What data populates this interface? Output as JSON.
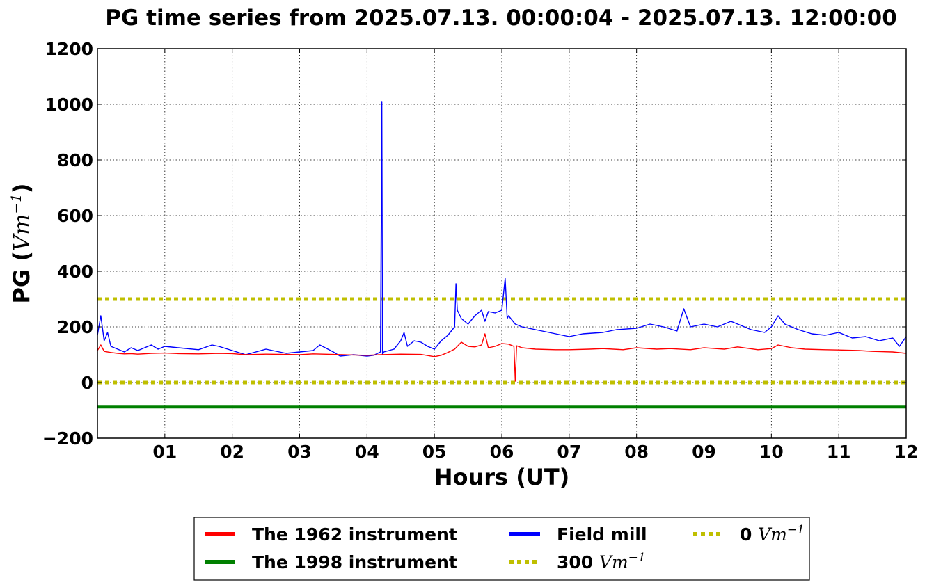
{
  "chart_data": {
    "type": "line",
    "title": "PG time series from 2025.07.13. 00:00:04 - 2025.07.13. 12:00:00",
    "xlabel": "Hours (UT)",
    "ylabel_prefix": "PG (",
    "ylabel_unit": "Vm",
    "ylabel_exp": "−1",
    "ylabel_suffix": ")",
    "xlim": [
      0,
      12
    ],
    "ylim": [
      -200,
      1200
    ],
    "x_ticks": [
      1,
      2,
      3,
      4,
      5,
      6,
      7,
      8,
      9,
      10,
      11,
      12
    ],
    "x_tick_labels": [
      "01",
      "02",
      "03",
      "04",
      "05",
      "06",
      "07",
      "08",
      "09",
      "10",
      "11",
      "12"
    ],
    "y_ticks": [
      -200,
      0,
      200,
      400,
      600,
      800,
      1000,
      1200
    ],
    "y_tick_labels": [
      "−200",
      "0",
      "200",
      "400",
      "600",
      "800",
      "1000",
      "1200"
    ],
    "grid": true,
    "legend_position": "bottom-center, below axes",
    "series": [
      {
        "name": "The 1962 instrument",
        "color": "#ff0000",
        "x": [
          0.0,
          0.05,
          0.1,
          0.2,
          0.3,
          0.4,
          0.5,
          0.6,
          0.8,
          1.0,
          1.2,
          1.5,
          1.8,
          2.0,
          2.2,
          2.5,
          2.8,
          3.0,
          3.2,
          3.5,
          3.8,
          4.0,
          4.2,
          4.5,
          4.8,
          5.0,
          5.1,
          5.2,
          5.3,
          5.4,
          5.5,
          5.6,
          5.7,
          5.75,
          5.8,
          5.9,
          6.0,
          6.1,
          6.18,
          6.2,
          6.22,
          6.3,
          6.5,
          6.8,
          7.0,
          7.3,
          7.5,
          7.8,
          8.0,
          8.3,
          8.5,
          8.8,
          9.0,
          9.3,
          9.5,
          9.8,
          10.0,
          10.1,
          10.3,
          10.5,
          10.8,
          11.0,
          11.3,
          11.5,
          11.8,
          12.0
        ],
        "values": [
          115,
          135,
          112,
          108,
          105,
          103,
          104,
          102,
          105,
          106,
          104,
          103,
          105,
          104,
          100,
          102,
          101,
          100,
          103,
          101,
          99,
          98,
          100,
          102,
          101,
          93,
          98,
          108,
          120,
          145,
          130,
          128,
          135,
          175,
          125,
          130,
          140,
          138,
          130,
          5,
          132,
          125,
          120,
          118,
          118,
          120,
          122,
          118,
          125,
          120,
          122,
          118,
          125,
          120,
          128,
          118,
          122,
          135,
          125,
          120,
          118,
          117,
          115,
          112,
          110,
          105
        ]
      },
      {
        "name": "The 1998 instrument",
        "color": "#008000",
        "x": [
          0,
          12
        ],
        "values": [
          -88,
          -88
        ]
      },
      {
        "name": "Field mill",
        "color": "#0000ff",
        "x": [
          0.0,
          0.05,
          0.1,
          0.15,
          0.2,
          0.3,
          0.4,
          0.5,
          0.6,
          0.8,
          0.9,
          1.0,
          1.2,
          1.5,
          1.7,
          1.8,
          2.0,
          2.2,
          2.5,
          2.8,
          3.0,
          3.2,
          3.3,
          3.5,
          3.6,
          3.8,
          4.0,
          4.1,
          4.2,
          4.22,
          4.23,
          4.25,
          4.4,
          4.5,
          4.55,
          4.6,
          4.7,
          4.8,
          4.9,
          5.0,
          5.1,
          5.2,
          5.3,
          5.32,
          5.34,
          5.4,
          5.5,
          5.6,
          5.7,
          5.75,
          5.8,
          5.9,
          6.0,
          6.05,
          6.08,
          6.1,
          6.2,
          6.3,
          6.5,
          6.7,
          6.9,
          7.0,
          7.2,
          7.5,
          7.7,
          8.0,
          8.2,
          8.4,
          8.6,
          8.7,
          8.8,
          9.0,
          9.2,
          9.4,
          9.5,
          9.7,
          9.9,
          10.0,
          10.1,
          10.2,
          10.4,
          10.6,
          10.8,
          11.0,
          11.2,
          11.4,
          11.6,
          11.8,
          11.9,
          12.0
        ],
        "values": [
          170,
          240,
          150,
          180,
          130,
          120,
          110,
          125,
          115,
          135,
          120,
          130,
          125,
          118,
          135,
          130,
          115,
          100,
          120,
          105,
          110,
          115,
          135,
          110,
          95,
          100,
          95,
          98,
          110,
          1010,
          100,
          110,
          120,
          150,
          180,
          130,
          150,
          145,
          130,
          120,
          150,
          170,
          200,
          355,
          260,
          230,
          210,
          240,
          260,
          220,
          255,
          250,
          260,
          375,
          230,
          240,
          210,
          200,
          190,
          180,
          170,
          165,
          175,
          180,
          190,
          195,
          210,
          200,
          185,
          265,
          200,
          210,
          200,
          220,
          210,
          190,
          180,
          200,
          240,
          210,
          190,
          175,
          170,
          180,
          160,
          165,
          150,
          160,
          130,
          165
        ]
      },
      {
        "name": "300 ",
        "unit": "Vm",
        "exp": "−1",
        "color": "#bfbf00",
        "style": "dotted",
        "x": [
          0,
          12
        ],
        "values": [
          300,
          300
        ]
      },
      {
        "name": "0 ",
        "unit": "Vm",
        "exp": "−1",
        "color": "#bfbf00",
        "style": "dotted",
        "x": [
          0,
          12
        ],
        "values": [
          0,
          0
        ]
      }
    ]
  }
}
